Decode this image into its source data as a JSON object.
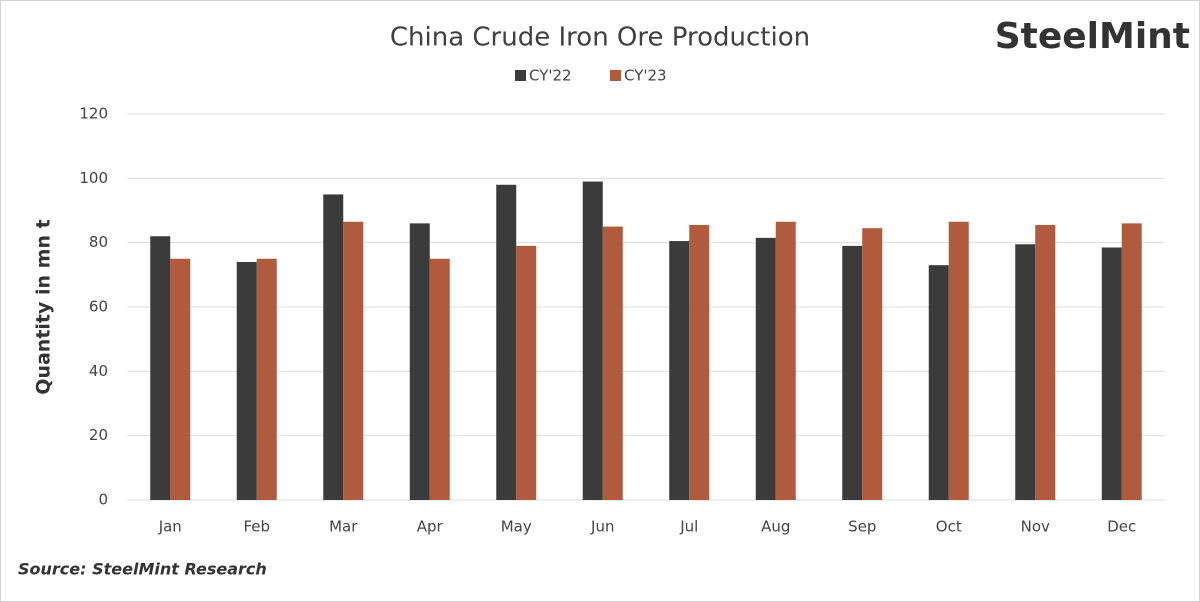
{
  "chart_data": {
    "type": "bar",
    "title": "China Crude Iron Ore Production",
    "brand": "SteelMint",
    "source": "Source: SteelMint Research",
    "y_label": "Quantity in mn t",
    "categories": [
      "Jan",
      "Feb",
      "Mar",
      "Apr",
      "May",
      "Jun",
      "Jul",
      "Aug",
      "Sep",
      "Oct",
      "Nov",
      "Dec"
    ],
    "series": [
      {
        "name": "CY'22",
        "color": "#3b3b3b",
        "values": [
          82,
          74,
          95,
          86,
          98,
          99,
          80.5,
          81.5,
          79,
          73,
          79.5,
          78.5
        ]
      },
      {
        "name": "CY'23",
        "color": "#b05a3e",
        "values": [
          75,
          75,
          86.5,
          75,
          79,
          85,
          85.5,
          86.5,
          84.5,
          86.5,
          85.5,
          86
        ]
      }
    ],
    "ylim": [
      0,
      120
    ],
    "yticks": [
      0,
      20,
      40,
      60,
      80,
      100,
      120
    ],
    "grid": true
  }
}
